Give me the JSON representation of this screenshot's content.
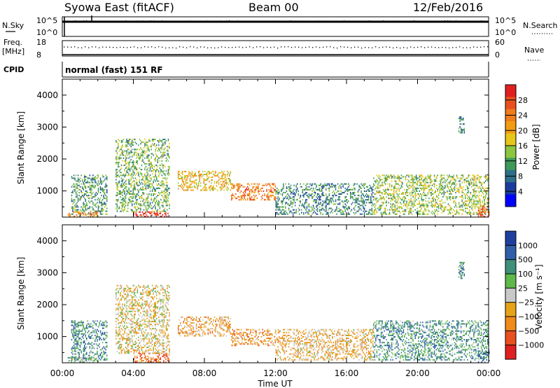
{
  "header": {
    "station": "Syowa East (fitACF)",
    "beam": "Beam 00",
    "date": "12/Feb/2016"
  },
  "status_panel": {
    "nsky_label": "N.Sky",
    "nsky_ticks": [
      "10^5",
      "10^0"
    ],
    "nsearch_label": "N.Search",
    "nsearch_ticks": [
      "10^5",
      "10^0"
    ],
    "freq_label_1": "Freq.",
    "freq_label_2": "[MHz]",
    "freq_ticks": [
      "18",
      "8"
    ],
    "nave_label": "Nave",
    "nave_ticks": [
      "60",
      "0"
    ],
    "cpid_label": "CPID",
    "cpid_text": "normal (fast) 151 RF"
  },
  "colors": {
    "power_scale": [
      "#0000ff",
      "#1a3c9c",
      "#2f6f8a",
      "#3f9a5a",
      "#8cc63f",
      "#e6c619",
      "#f39c12",
      "#f07d1a",
      "#e8501f",
      "#e02020"
    ],
    "velocity_scale": [
      "#1f3fa0",
      "#2f5fa8",
      "#3f8f7a",
      "#5fb84a",
      "#c8c8c8",
      "#e6a317",
      "#f08a1a",
      "#e8501f",
      "#e02020"
    ]
  },
  "chart_data": [
    {
      "type": "heatmap",
      "panel": "power",
      "ylabel": "Slant Range [km]",
      "xlabel": "",
      "x_ticks": [
        "00:00",
        "04:00",
        "08:00",
        "12:00",
        "16:00",
        "20:00",
        "00:00"
      ],
      "y_ticks": [
        1000,
        2000,
        3000,
        4000
      ],
      "xlim_hours": [
        0,
        24
      ],
      "ylim_km": [
        180,
        4500
      ],
      "colorbar": {
        "label": "Power [dB]",
        "ticks": [
          "4",
          "8",
          "12",
          "16",
          "20",
          "24",
          "28"
        ],
        "range": [
          0,
          30
        ]
      },
      "echo_regions": [
        {
          "t0": 0.5,
          "t1": 2.5,
          "r0": 250,
          "r1": 1500,
          "level": 0.35
        },
        {
          "t0": 0.3,
          "t1": 2.0,
          "r0": 180,
          "r1": 330,
          "level": 0.7
        },
        {
          "t0": 4.0,
          "t1": 6.0,
          "r0": 180,
          "r1": 340,
          "level": 0.95
        },
        {
          "t0": 3.0,
          "t1": 6.0,
          "r0": 340,
          "r1": 2600,
          "level": 0.4
        },
        {
          "t0": 6.5,
          "t1": 9.5,
          "r0": 1000,
          "r1": 1600,
          "level": 0.6
        },
        {
          "t0": 9.5,
          "t1": 12.0,
          "r0": 700,
          "r1": 1200,
          "level": 0.75
        },
        {
          "t0": 12.0,
          "t1": 17.5,
          "r0": 250,
          "r1": 1200,
          "level": 0.3
        },
        {
          "t0": 17.5,
          "t1": 24.0,
          "r0": 250,
          "r1": 1500,
          "level": 0.45
        },
        {
          "t0": 22.3,
          "t1": 22.6,
          "r0": 2800,
          "r1": 3300,
          "level": 0.3
        },
        {
          "t0": 23.4,
          "t1": 24.0,
          "r0": 180,
          "r1": 500,
          "level": 0.8
        }
      ]
    },
    {
      "type": "heatmap",
      "panel": "velocity",
      "ylabel": "Slant Range [km]",
      "xlabel": "Time UT",
      "x_ticks": [
        "00:00",
        "04:00",
        "08:00",
        "12:00",
        "16:00",
        "20:00",
        "00:00"
      ],
      "y_ticks": [
        1000,
        2000,
        3000,
        4000
      ],
      "xlim_hours": [
        0,
        24
      ],
      "ylim_km": [
        180,
        4500
      ],
      "colorbar": {
        "label": "Velocity [m s⁻¹]",
        "ticks": [
          "1000",
          "500",
          "100",
          "25",
          "−25",
          "−100",
          "−500",
          "−1000"
        ],
        "range": [
          1000,
          -1000
        ]
      },
      "echo_regions": [
        {
          "t0": 0.5,
          "t1": 2.5,
          "r0": 250,
          "r1": 1500,
          "level": 0.25
        },
        {
          "t0": 0.3,
          "t1": 2.0,
          "r0": 180,
          "r1": 330,
          "level": 0.4
        },
        {
          "t0": 4.0,
          "t1": 6.0,
          "r0": 180,
          "r1": 460,
          "level": 0.8
        },
        {
          "t0": 3.0,
          "t1": 6.0,
          "r0": 460,
          "r1": 2600,
          "level": 0.55
        },
        {
          "t0": 6.5,
          "t1": 9.5,
          "r0": 1000,
          "r1": 1600,
          "level": 0.65
        },
        {
          "t0": 9.5,
          "t1": 12.0,
          "r0": 700,
          "r1": 1200,
          "level": 0.7
        },
        {
          "t0": 12.0,
          "t1": 17.5,
          "r0": 250,
          "r1": 1200,
          "level": 0.6
        },
        {
          "t0": 17.5,
          "t1": 24.0,
          "r0": 250,
          "r1": 1500,
          "level": 0.3
        },
        {
          "t0": 22.3,
          "t1": 22.6,
          "r0": 2800,
          "r1": 3300,
          "level": 0.25
        },
        {
          "t0": 23.4,
          "t1": 24.0,
          "r0": 180,
          "r1": 500,
          "level": 0.2
        }
      ]
    }
  ]
}
